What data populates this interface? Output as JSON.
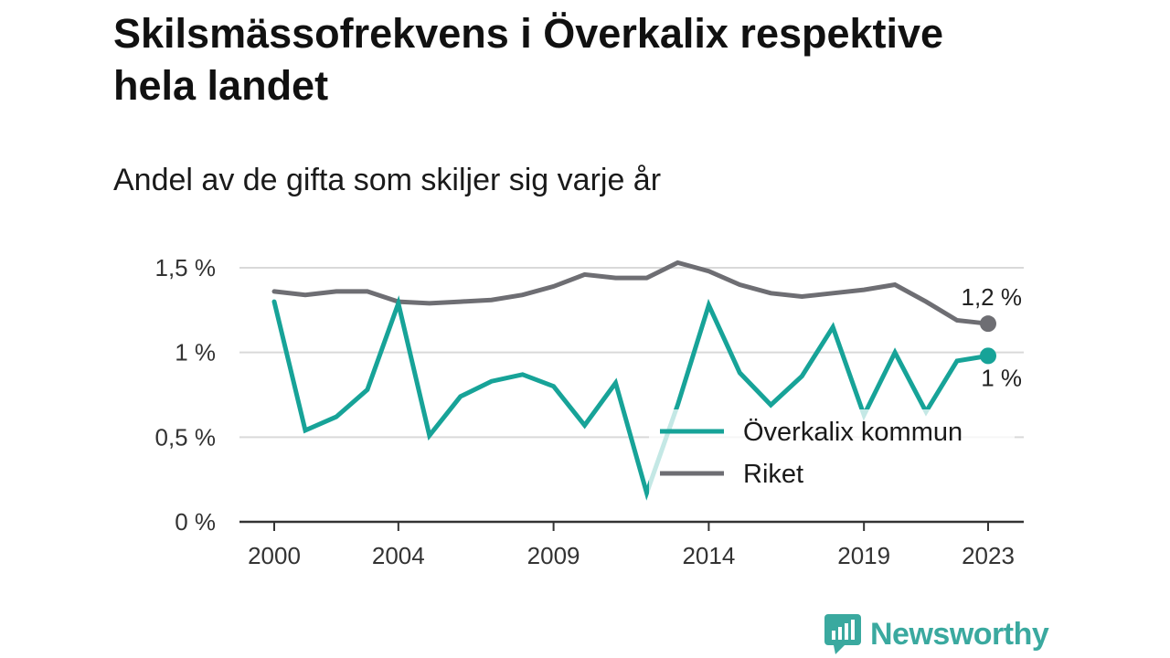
{
  "title": "Skilsmässofrekvens i Överkalix respektive hela landet",
  "subtitle": "Andel av de gifta som skiljer sig varje år",
  "brand": "Newsworthy",
  "colors": {
    "overkalix": "#17a398",
    "riket": "#6e6e73",
    "grid": "#d9d9d9",
    "axis": "#333333",
    "brand": "#3aa99f"
  },
  "chart_data": {
    "type": "line",
    "x": [
      2000,
      2001,
      2002,
      2003,
      2004,
      2005,
      2006,
      2007,
      2008,
      2009,
      2010,
      2011,
      2012,
      2013,
      2014,
      2015,
      2016,
      2017,
      2018,
      2019,
      2020,
      2021,
      2022,
      2023
    ],
    "x_tick_values": [
      2000,
      2004,
      2009,
      2014,
      2019,
      2023
    ],
    "x_tick_labels": [
      "2000",
      "2004",
      "2009",
      "2014",
      "2019",
      "2023"
    ],
    "y_ticks": [
      0,
      0.5,
      1,
      1.5
    ],
    "y_tick_labels": [
      "0 %",
      "0,5 %",
      "1 %",
      "1,5 %"
    ],
    "ylim": [
      0,
      1.5
    ],
    "grid": true,
    "legend_position": "right",
    "series": [
      {
        "name": "Överkalix kommun",
        "color": "#17a398",
        "values": [
          1.3,
          0.54,
          0.62,
          0.78,
          1.29,
          0.51,
          0.74,
          0.83,
          0.87,
          0.8,
          0.57,
          0.82,
          0.17,
          0.69,
          1.28,
          0.88,
          0.69,
          0.86,
          1.15,
          0.63,
          1.0,
          0.65,
          0.95,
          0.98
        ],
        "end_label": "1 %"
      },
      {
        "name": "Riket",
        "color": "#6e6e73",
        "values": [
          1.36,
          1.34,
          1.36,
          1.36,
          1.3,
          1.29,
          1.3,
          1.31,
          1.34,
          1.39,
          1.46,
          1.44,
          1.44,
          1.53,
          1.48,
          1.4,
          1.35,
          1.33,
          1.35,
          1.37,
          1.4,
          1.3,
          1.19,
          1.17
        ],
        "end_label": "1,2 %"
      }
    ]
  }
}
